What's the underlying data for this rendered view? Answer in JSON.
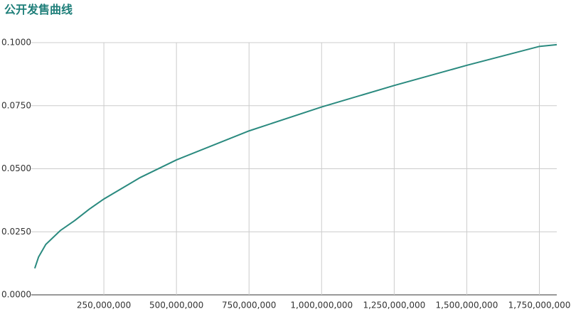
{
  "chart_data": {
    "type": "line",
    "title": "公开发售曲线",
    "x": [
      12000000,
      25000000,
      50000000,
      100000000,
      150000000,
      200000000,
      250000000,
      375000000,
      500000000,
      750000000,
      1000000000,
      1250000000,
      1500000000,
      1750000000,
      1810000000
    ],
    "series": [
      {
        "color": "#2a8a7f",
        "values": [
          0.0105,
          0.015,
          0.02,
          0.0255,
          0.0295,
          0.034,
          0.038,
          0.0465,
          0.0535,
          0.065,
          0.0745,
          0.083,
          0.091,
          0.0985,
          0.0992
        ]
      }
    ],
    "xlim": [
      0,
      1810000000
    ],
    "xticks": [
      {
        "value": 250000000,
        "label": "250,000,000"
      },
      {
        "value": 500000000,
        "label": "500,000,000"
      },
      {
        "value": 750000000,
        "label": "750,000,000"
      },
      {
        "value": 1000000000,
        "label": "1,000,000,000"
      },
      {
        "value": 1250000000,
        "label": "1,250,000,000"
      },
      {
        "value": 1500000000,
        "label": "1,500,000,000"
      },
      {
        "value": 1750000000,
        "label": "1,750,000,000"
      }
    ],
    "ylim": [
      0,
      0.1
    ],
    "yticks": [
      {
        "value": 0,
        "label": "0.0000"
      },
      {
        "value": 0.025,
        "label": "0.0250"
      },
      {
        "value": 0.05,
        "label": "0.0500"
      },
      {
        "value": 0.075,
        "label": "0.0750"
      },
      {
        "value": 0.1,
        "label": "0.1000"
      }
    ],
    "grid": true
  }
}
